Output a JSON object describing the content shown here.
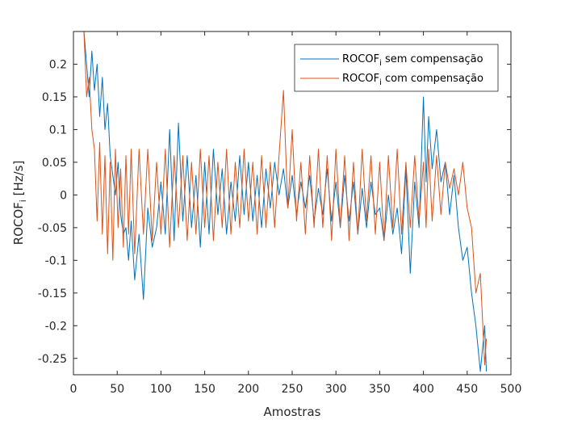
{
  "chart_data": {
    "type": "line",
    "title": "",
    "xlabel": "Amostras",
    "ylabel": {
      "main": "ROCOF",
      "sub": "i",
      "rest": " [Hz/s]"
    },
    "xlim": [
      0,
      500
    ],
    "ylim": [
      -0.275,
      0.25
    ],
    "xticks": [
      0,
      50,
      100,
      150,
      200,
      250,
      300,
      350,
      400,
      450,
      500
    ],
    "yticks": [
      -0.25,
      -0.2,
      -0.15,
      -0.1,
      -0.05,
      0,
      0.05,
      0.1,
      0.15,
      0.2
    ],
    "ytick_labels": [
      "-0.25",
      "-0.2",
      "-0.15",
      "-0.1",
      "-0.05",
      "0",
      "0.05",
      "0.1",
      "0.15",
      "0.2"
    ],
    "grid": false,
    "legend_position": "top-right",
    "series": [
      {
        "name": {
          "main": "ROCOF",
          "sub": "i",
          "rest": " sem compensação"
        },
        "color": "#0072BD",
        "x": [
          12,
          15,
          18,
          21,
          24,
          27,
          30,
          33,
          36,
          39,
          42,
          45,
          48,
          51,
          54,
          57,
          60,
          63,
          66,
          70,
          75,
          80,
          85,
          90,
          95,
          100,
          105,
          110,
          115,
          120,
          125,
          130,
          135,
          140,
          145,
          150,
          155,
          160,
          165,
          170,
          175,
          180,
          185,
          190,
          195,
          200,
          205,
          210,
          215,
          220,
          225,
          230,
          235,
          240,
          245,
          250,
          255,
          260,
          265,
          270,
          275,
          280,
          285,
          290,
          295,
          300,
          305,
          310,
          315,
          320,
          325,
          330,
          335,
          340,
          345,
          350,
          355,
          360,
          365,
          370,
          375,
          380,
          385,
          390,
          395,
          400,
          403,
          406,
          410,
          415,
          420,
          425,
          430,
          435,
          440,
          445,
          450,
          455,
          460,
          465,
          470,
          472
        ],
        "y": [
          0.25,
          0.2,
          0.15,
          0.22,
          0.16,
          0.2,
          0.12,
          0.18,
          0.1,
          0.14,
          0.06,
          0.03,
          0.0,
          0.05,
          -0.03,
          -0.06,
          -0.05,
          -0.1,
          -0.04,
          -0.13,
          -0.06,
          -0.16,
          -0.02,
          -0.08,
          -0.05,
          0.02,
          -0.06,
          0.1,
          -0.07,
          0.11,
          -0.04,
          0.06,
          -0.05,
          0.03,
          -0.08,
          0.05,
          -0.06,
          0.07,
          -0.03,
          0.04,
          -0.06,
          0.02,
          -0.04,
          0.06,
          -0.03,
          0.05,
          -0.04,
          0.03,
          -0.05,
          0.04,
          -0.02,
          0.05,
          0.0,
          0.04,
          -0.02,
          0.03,
          -0.03,
          0.02,
          -0.02,
          0.03,
          -0.04,
          0.01,
          -0.03,
          0.04,
          -0.04,
          0.02,
          -0.05,
          0.03,
          -0.04,
          0.02,
          -0.06,
          0.01,
          -0.05,
          0.02,
          -0.03,
          -0.02,
          -0.07,
          0.0,
          -0.06,
          -0.02,
          -0.09,
          0.04,
          -0.12,
          0.02,
          -0.05,
          0.15,
          0.02,
          0.12,
          0.04,
          0.1,
          0.02,
          0.05,
          -0.03,
          0.03,
          -0.05,
          -0.1,
          -0.08,
          -0.15,
          -0.2,
          -0.27,
          -0.2,
          -0.27
        ]
      },
      {
        "name": {
          "main": "ROCOF",
          "sub": "i",
          "rest": " com compensação"
        },
        "color": "#D95319",
        "x": [
          12,
          15,
          18,
          21,
          24,
          27,
          30,
          33,
          36,
          39,
          42,
          45,
          48,
          51,
          54,
          57,
          60,
          63,
          66,
          70,
          75,
          80,
          85,
          90,
          95,
          100,
          105,
          110,
          115,
          120,
          125,
          130,
          135,
          140,
          145,
          150,
          155,
          160,
          165,
          170,
          175,
          180,
          185,
          190,
          195,
          200,
          205,
          210,
          215,
          220,
          225,
          230,
          235,
          240,
          245,
          250,
          255,
          260,
          265,
          270,
          275,
          280,
          285,
          290,
          295,
          300,
          305,
          310,
          315,
          320,
          325,
          330,
          335,
          340,
          345,
          350,
          355,
          360,
          365,
          370,
          375,
          380,
          385,
          390,
          395,
          400,
          403,
          406,
          410,
          415,
          420,
          425,
          430,
          435,
          440,
          445,
          450,
          455,
          460,
          465,
          470,
          472
        ],
        "y": [
          0.25,
          0.15,
          0.18,
          0.1,
          0.07,
          -0.04,
          0.08,
          -0.06,
          0.06,
          -0.09,
          0.05,
          -0.1,
          0.07,
          -0.05,
          0.04,
          -0.08,
          0.06,
          -0.06,
          0.07,
          -0.09,
          0.07,
          -0.06,
          0.07,
          -0.07,
          0.05,
          -0.06,
          0.07,
          -0.08,
          0.06,
          -0.05,
          0.06,
          -0.07,
          0.05,
          -0.06,
          0.07,
          -0.05,
          0.06,
          -0.07,
          0.05,
          -0.05,
          0.07,
          -0.06,
          0.05,
          -0.05,
          0.07,
          -0.04,
          0.05,
          -0.06,
          0.06,
          -0.05,
          0.05,
          -0.05,
          0.06,
          0.16,
          -0.02,
          0.1,
          -0.04,
          0.05,
          -0.06,
          0.06,
          -0.05,
          0.07,
          -0.05,
          0.06,
          -0.07,
          0.07,
          -0.05,
          0.06,
          -0.07,
          0.05,
          -0.06,
          0.07,
          -0.04,
          0.06,
          -0.06,
          0.05,
          -0.07,
          0.06,
          -0.05,
          0.07,
          -0.06,
          0.05,
          -0.05,
          0.06,
          -0.04,
          0.05,
          -0.05,
          0.07,
          -0.04,
          0.06,
          -0.03,
          0.05,
          0.01,
          0.04,
          0.0,
          0.05,
          -0.02,
          -0.05,
          -0.15,
          -0.12,
          -0.26,
          -0.22
        ]
      }
    ]
  }
}
